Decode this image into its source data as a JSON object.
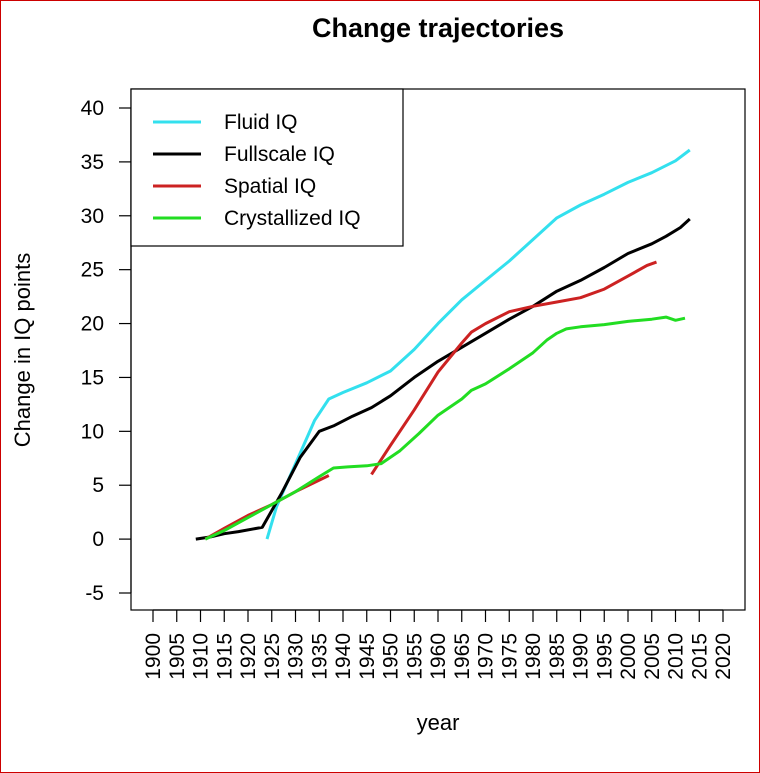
{
  "chart_data": {
    "type": "line",
    "title": "Change trajectories",
    "xlabel": "year",
    "ylabel": "Change in IQ points",
    "xlim": [
      1900,
      2020
    ],
    "ylim": [
      -5,
      40
    ],
    "x_ticks": [
      "1900",
      "1905",
      "1910",
      "1915",
      "1920",
      "1925",
      "1930",
      "1935",
      "1940",
      "1945",
      "1950",
      "1955",
      "1960",
      "1965",
      "1970",
      "1975",
      "1980",
      "1985",
      "1990",
      "1995",
      "2000",
      "2005",
      "2010",
      "2015",
      "2020"
    ],
    "y_ticks": [
      "-5",
      "0",
      "5",
      "10",
      "15",
      "20",
      "25",
      "30",
      "35",
      "40"
    ],
    "grid": false,
    "legend_position": "top-left",
    "series": [
      {
        "name": "Fluid IQ",
        "color": "#33e0ee",
        "segments": [
          [
            [
              1924,
              0
            ],
            [
              1926,
              3
            ],
            [
              1928,
              5
            ],
            [
              1931,
              8
            ],
            [
              1934,
              11
            ],
            [
              1937,
              13
            ],
            [
              1940,
              13.6
            ],
            [
              1945,
              14.5
            ],
            [
              1950,
              15.6
            ],
            [
              1955,
              17.6
            ],
            [
              1960,
              20
            ],
            [
              1965,
              22.2
            ],
            [
              1970,
              24
            ],
            [
              1975,
              25.8
            ],
            [
              1980,
              27.8
            ],
            [
              1985,
              29.8
            ],
            [
              1990,
              31
            ],
            [
              1995,
              32
            ],
            [
              2000,
              33.1
            ],
            [
              2005,
              34
            ],
            [
              2010,
              35.1
            ],
            [
              2013,
              36.1
            ]
          ]
        ]
      },
      {
        "name": "Fullscale IQ",
        "color": "#000000",
        "segments": [
          [
            [
              1909,
              0
            ],
            [
              1912,
              0.2
            ],
            [
              1915,
              0.5
            ],
            [
              1918,
              0.7
            ],
            [
              1923,
              1.1
            ],
            [
              1927,
              4.2
            ],
            [
              1931,
              7.6
            ],
            [
              1935,
              10
            ],
            [
              1938,
              10.5
            ],
            [
              1942,
              11.4
            ],
            [
              1946,
              12.2
            ],
            [
              1950,
              13.3
            ],
            [
              1955,
              15
            ],
            [
              1960,
              16.5
            ],
            [
              1965,
              17.8
            ],
            [
              1970,
              19.1
            ],
            [
              1975,
              20.4
            ],
            [
              1980,
              21.6
            ],
            [
              1985,
              23
            ],
            [
              1990,
              24
            ],
            [
              1995,
              25.2
            ],
            [
              2000,
              26.5
            ],
            [
              2005,
              27.4
            ],
            [
              2008,
              28.1
            ],
            [
              2011,
              28.9
            ],
            [
              2013,
              29.7
            ]
          ]
        ]
      },
      {
        "name": "Spatial IQ",
        "color": "#cc2222",
        "segments": [
          [
            [
              1911,
              0
            ],
            [
              1915,
              1
            ],
            [
              1920,
              2.2
            ],
            [
              1925,
              3.2
            ],
            [
              1930,
              4.4
            ],
            [
              1937,
              5.9
            ]
          ],
          [
            [
              1946,
              6
            ],
            [
              1950,
              8.7
            ],
            [
              1955,
              12
            ],
            [
              1960,
              15.5
            ],
            [
              1965,
              18.2
            ],
            [
              1967,
              19.2
            ],
            [
              1970,
              20
            ],
            [
              1975,
              21.1
            ],
            [
              1980,
              21.6
            ],
            [
              1985,
              22
            ],
            [
              1990,
              22.4
            ],
            [
              1995,
              23.2
            ],
            [
              2000,
              24.4
            ],
            [
              2004,
              25.4
            ],
            [
              2006,
              25.7
            ]
          ]
        ]
      },
      {
        "name": "Crystallized IQ",
        "color": "#22dd22",
        "segments": [
          [
            [
              1911,
              0
            ],
            [
              1915,
              0.8
            ],
            [
              1920,
              2
            ],
            [
              1925,
              3.2
            ],
            [
              1930,
              4.4
            ],
            [
              1935,
              5.8
            ],
            [
              1938,
              6.6
            ],
            [
              1941,
              6.7
            ],
            [
              1945,
              6.8
            ],
            [
              1948,
              7
            ],
            [
              1952,
              8.2
            ],
            [
              1956,
              9.8
            ],
            [
              1960,
              11.5
            ],
            [
              1965,
              13
            ],
            [
              1967,
              13.8
            ],
            [
              1970,
              14.4
            ],
            [
              1975,
              15.8
            ],
            [
              1980,
              17.3
            ],
            [
              1983,
              18.5
            ],
            [
              1985,
              19.1
            ],
            [
              1987,
              19.5
            ],
            [
              1990,
              19.7
            ],
            [
              1995,
              19.9
            ],
            [
              2000,
              20.2
            ],
            [
              2005,
              20.4
            ],
            [
              2008,
              20.6
            ],
            [
              2010,
              20.3
            ],
            [
              2012,
              20.5
            ]
          ]
        ]
      }
    ]
  }
}
